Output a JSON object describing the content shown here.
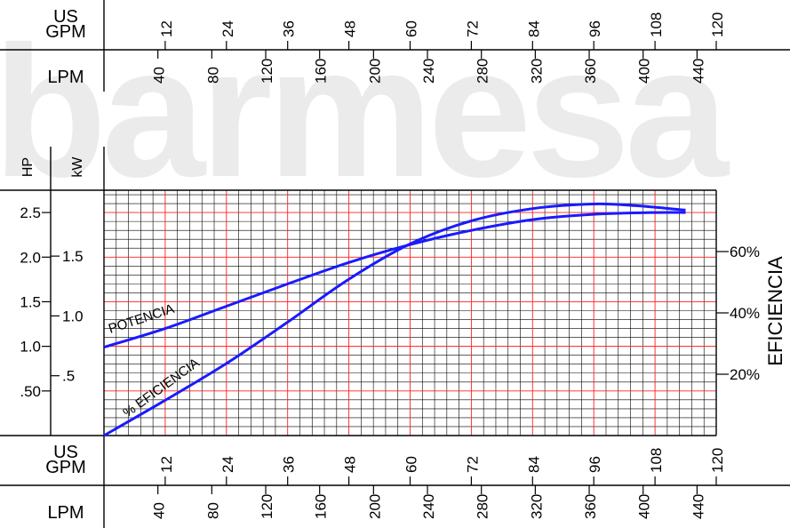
{
  "watermark": "barmesa",
  "chart_data": {
    "type": "line",
    "xunit_top_line1": "US",
    "xunit_top_line2": "GPM",
    "xunit_lpm": "LPM",
    "gpm_ticks": [
      "12",
      "24",
      "36",
      "48",
      "60",
      "72",
      "84",
      "96",
      "108",
      "120"
    ],
    "lpm_ticks": [
      "40",
      "80",
      "120",
      "160",
      "200",
      "240",
      "280",
      "320",
      "360",
      "400",
      "440"
    ],
    "hp_label": "HP",
    "kw_label": "kW",
    "hp_ticks": [
      "2.5",
      "2.0",
      "1.5",
      "1.0",
      ".50"
    ],
    "kw_ticks": [
      "1.5",
      "1.0",
      ".5"
    ],
    "eff_ticks": [
      "60%",
      "40%",
      "20%"
    ],
    "eff_axis_label": "EFICIENCIA",
    "xlim_gpm": [
      0,
      120
    ],
    "hp_range": [
      0,
      2.75
    ],
    "eff_range": [
      0,
      80
    ],
    "grid": true,
    "series": [
      {
        "name": "POTENCIA",
        "x_gpm": [
          0,
          12,
          24,
          36,
          48,
          60,
          72,
          84,
          96,
          108,
          114
        ],
        "hp": [
          0.99,
          1.2,
          1.45,
          1.7,
          1.94,
          2.14,
          2.3,
          2.42,
          2.48,
          2.5,
          2.5
        ]
      },
      {
        "name": "% EFICIENCIA",
        "x_gpm": [
          0,
          12,
          24,
          36,
          48,
          60,
          72,
          84,
          96,
          104,
          114
        ],
        "eff_pct": [
          0,
          11.5,
          23.5,
          37,
          51,
          62.5,
          70,
          74,
          75.5,
          75,
          73.5
        ]
      }
    ]
  }
}
